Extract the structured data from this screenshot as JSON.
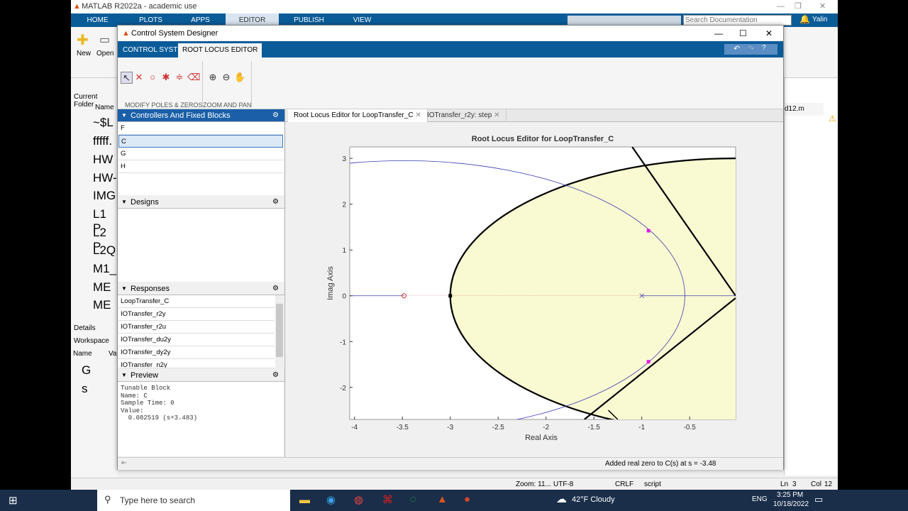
{
  "matlab": {
    "title": "MATLAB R2022a - academic use",
    "tabs": [
      "HOME",
      "PLOTS",
      "APPS",
      "EDITOR",
      "PUBLISH",
      "VIEW"
    ],
    "search_placeholder": "Search Documentation",
    "user": "Yalin",
    "new_label": "New",
    "open_label": "Open",
    "current_folder_label": "Current Folder",
    "name_col": "Name",
    "files": [
      "~$L",
      "fffff.",
      "HW",
      "HW-",
      "IMG",
      "L1 P",
      "L2 P",
      "L2Q",
      "M1_",
      "ME",
      "ME"
    ],
    "details_label": "Details",
    "workspace_label": "Workspace",
    "workspace_name_col": "Name",
    "workspace_value_col": "Va",
    "workspace_vars": [
      "G",
      "s"
    ],
    "editor_tab_partial": "d12.m",
    "status": {
      "zoom": "Zoom: 11...",
      "encoding": "UTF-8",
      "eol": "CRLF",
      "type": "script",
      "ln_label": "Ln",
      "ln": "3",
      "col_label": "Col",
      "col": "12"
    }
  },
  "designer": {
    "title": "Control System Designer",
    "tabs": [
      "CONTROL SYSTEM",
      "ROOT LOCUS EDITOR"
    ],
    "active_tab": "ROOT LOCUS EDITOR",
    "group_modify": "MODIFY POLES & ZEROS",
    "group_zoom": "ZOOM AND PAN",
    "controllers_header": "Controllers And Fixed Blocks",
    "controllers": [
      "F",
      "C",
      "G",
      "H"
    ],
    "selected_controller": "C",
    "designs_header": "Designs",
    "responses_header": "Responses",
    "responses": [
      "LoopTransfer_C",
      "IOTransfer_r2y",
      "IOTransfer_r2u",
      "IOTransfer_du2y",
      "IOTransfer_dy2y",
      "IOTransfer_n2y"
    ],
    "preview_header": "Preview",
    "preview_lines": [
      "Tunable Block",
      "Name: C",
      "Sample Time: 0",
      "Value:",
      "  0.082519 (s+3.483)"
    ],
    "doc_tabs": [
      "Root Locus Editor for LoopTransfer_C",
      "IOTransfer_r2y: step"
    ],
    "status_msg": "Added real zero to C(s) at s = -3.48"
  },
  "chart_data": {
    "type": "scatter",
    "title": "Root Locus Editor for LoopTransfer_C",
    "xlabel": "Real Axis",
    "ylabel": "Imag Axis",
    "xlim": [
      -4.05,
      -0.02
    ],
    "ylim": [
      -2.7,
      3.25
    ],
    "xticks": [
      -4,
      -3.5,
      -3,
      -2.5,
      -2,
      -1.5,
      -1,
      -0.5
    ],
    "yticks": [
      -2,
      -1,
      0,
      1,
      2,
      3
    ],
    "zero": {
      "x": -3.483,
      "y": 0
    },
    "pole": {
      "x": -1.0,
      "y": 0
    },
    "closed_loop_poles": [
      {
        "x": -0.93,
        "y": 1.42
      },
      {
        "x": -0.93,
        "y": -1.44
      },
      {
        "x": -3.0,
        "y": 0
      }
    ],
    "colors": {
      "region": "#fafad2",
      "locus": "#3b3bb3",
      "boundary": "#000000",
      "cl_pole": "#e61ee6",
      "zero": "#cc3333"
    }
  },
  "taskbar": {
    "search_placeholder": "Type here to search",
    "weather": "42°F Cloudy",
    "lang": "ENG",
    "time": "3:25 PM",
    "date": "10/18/2022"
  }
}
